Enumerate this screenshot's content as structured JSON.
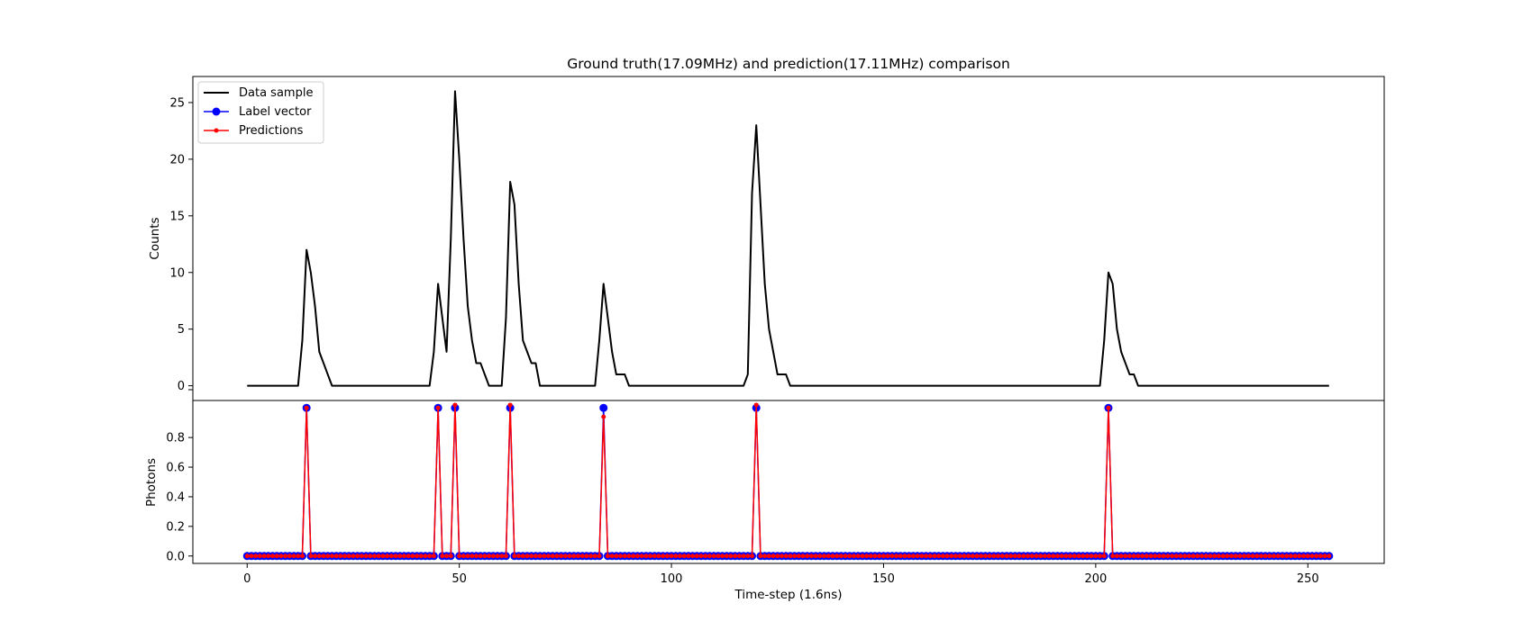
{
  "chart_data": {
    "type": "line",
    "title": "Ground truth(17.09MHz) and prediction(17.11MHz) comparison",
    "xlabel": "Time-step (1.6ns)",
    "xlim": [
      -12.8,
      268
    ],
    "xticks": [
      0,
      50,
      100,
      150,
      200,
      250
    ],
    "legend": {
      "placement": "top-left",
      "entries": [
        "Data sample",
        "Label vector",
        "Predictions"
      ]
    },
    "colors": {
      "data_sample": "#000000",
      "label_vector": "#0000ff",
      "predictions": "#ff0000"
    },
    "top_panel": {
      "ylabel": "Counts",
      "ylim": [
        -1.3,
        27.3
      ],
      "yticks": [
        0,
        5,
        10,
        15,
        20,
        25
      ],
      "series": [
        {
          "name": "Data sample",
          "length": 256,
          "nonzero": [
            [
              13,
              4
            ],
            [
              14,
              12
            ],
            [
              15,
              10
            ],
            [
              16,
              7
            ],
            [
              17,
              3
            ],
            [
              18,
              2
            ],
            [
              19,
              1
            ],
            [
              44,
              3
            ],
            [
              45,
              9
            ],
            [
              46,
              6
            ],
            [
              47,
              3
            ],
            [
              48,
              13
            ],
            [
              49,
              26
            ],
            [
              50,
              20
            ],
            [
              51,
              13
            ],
            [
              52,
              7
            ],
            [
              53,
              4
            ],
            [
              54,
              2
            ],
            [
              55,
              2
            ],
            [
              56,
              1
            ],
            [
              61,
              6
            ],
            [
              62,
              18
            ],
            [
              63,
              16
            ],
            [
              64,
              9
            ],
            [
              65,
              4
            ],
            [
              66,
              3
            ],
            [
              67,
              2
            ],
            [
              68,
              2
            ],
            [
              83,
              4
            ],
            [
              84,
              9
            ],
            [
              85,
              6
            ],
            [
              86,
              3
            ],
            [
              87,
              1
            ],
            [
              88,
              1
            ],
            [
              89,
              1
            ],
            [
              118,
              1
            ],
            [
              119,
              17
            ],
            [
              120,
              23
            ],
            [
              121,
              16
            ],
            [
              122,
              9
            ],
            [
              123,
              5
            ],
            [
              124,
              3
            ],
            [
              125,
              1
            ],
            [
              126,
              1
            ],
            [
              127,
              1
            ],
            [
              202,
              4
            ],
            [
              203,
              10
            ],
            [
              204,
              9
            ],
            [
              205,
              5
            ],
            [
              206,
              3
            ],
            [
              207,
              2
            ],
            [
              208,
              1
            ],
            [
              209,
              1
            ]
          ]
        }
      ]
    },
    "bottom_panel": {
      "ylabel": "Photons",
      "ylim": [
        -0.05,
        1.05
      ],
      "yticks": [
        0.0,
        0.2,
        0.4,
        0.6,
        0.8
      ],
      "series": [
        {
          "name": "Label vector",
          "length": 256,
          "ones": [
            14,
            45,
            49,
            62,
            84,
            120,
            203
          ]
        },
        {
          "name": "Predictions",
          "length": 256,
          "ones": [
            14,
            45,
            49,
            62,
            84,
            120,
            203
          ],
          "overrides": [
            [
              49,
              1.02
            ],
            [
              62,
              1.02
            ],
            [
              120,
              1.02
            ],
            [
              84,
              0.94
            ]
          ]
        }
      ]
    }
  }
}
